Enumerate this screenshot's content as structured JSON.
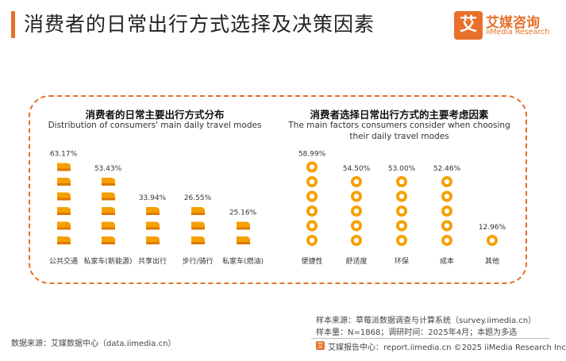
{
  "header": {
    "title": "消费者的日常出行方式选择及决策因素",
    "logo_mark": "艾",
    "logo_cn": "艾媒咨询",
    "logo_en": "iiMedia Research"
  },
  "left_panel": {
    "title_cn": "消费者的日常主要出行方式分布",
    "title_en": "Distribution of consumers' main daily travel modes"
  },
  "right_panel": {
    "title_cn": "消费者选择日常出行方式的主要考虑因素",
    "title_en_line1": "The main factors consumers consider when choosing",
    "title_en_line2": "their daily travel modes"
  },
  "colors": {
    "accent": "#e8702a",
    "icon_fill": "#f5a000",
    "icon_shade": "#e07800"
  },
  "chart_data": [
    {
      "type": "bar",
      "title": "消费者的日常主要出行方式分布",
      "subtitle": "Distribution of consumers' main daily travel modes",
      "categories": [
        "公共交通",
        "私家车(新能源)",
        "共享出行",
        "步行/骑行",
        "私家车(燃油)"
      ],
      "values": [
        63.17,
        53.43,
        33.94,
        26.55,
        25.16
      ],
      "value_labels": [
        "63.17%",
        "53.43%",
        "33.94%",
        "26.55%",
        "25.16%"
      ],
      "unit": "%",
      "ylim": [
        0,
        70
      ],
      "grid": false,
      "icon": "ticket-icon"
    },
    {
      "type": "bar",
      "title": "消费者选择日常出行方式的主要考虑因素",
      "subtitle": "The main factors consumers consider when choosing their daily travel modes",
      "categories": [
        "便捷性",
        "舒适度",
        "环保",
        "成本",
        "其他"
      ],
      "values": [
        58.99,
        54.5,
        53.0,
        52.46,
        12.96
      ],
      "value_labels": [
        "58.99%",
        "54.50%",
        "53.00%",
        "52.46%",
        "12.96%"
      ],
      "unit": "%",
      "ylim": [
        0,
        70
      ],
      "grid": false,
      "icon": "coin-icon"
    }
  ],
  "footer": {
    "data_source": "数据来源：艾媒数据中心（data.iimedia.cn）",
    "sample_source": "样本来源：草莓派数据调查与计算系统（survey.iimedia.cn）",
    "sample_info": "样本量：N=1868；调研时间：2025年4月；本题为多选",
    "report_mark": "艾",
    "report_center": "艾媒报告中心：report.iimedia.cn   ©2025  iiMedia Research  Inc"
  }
}
